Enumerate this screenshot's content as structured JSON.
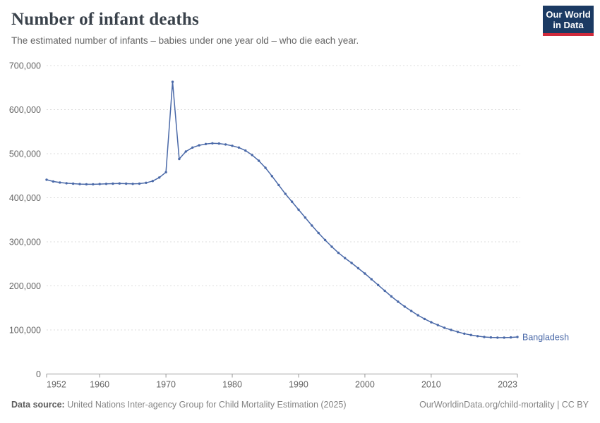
{
  "header": {
    "title": "Number of infant deaths",
    "subtitle": "The estimated number of infants – babies under one year old – who die each year.",
    "logo_line1": "Our World",
    "logo_line2": "in Data"
  },
  "footer": {
    "source_label": "Data source:",
    "source_text": " United Nations Inter-agency Group for Child Mortality Estimation (2025)",
    "attribution": "OurWorldinData.org/child-mortality | CC BY"
  },
  "colors": {
    "series_line": "#4a69a8",
    "logo_background": "#1b3a63",
    "logo_red_bar": "#cf2a3b",
    "gridline": "#dcdcdc",
    "axis_line": "#999999",
    "tick_label": "#666666"
  },
  "chart_data": {
    "type": "line",
    "title": "Number of infant deaths",
    "xlabel": "",
    "ylabel": "",
    "xlim": [
      1952,
      2023
    ],
    "ylim": [
      0,
      700000
    ],
    "grid": "horizontal-dashed",
    "legend_position": "end-of-line-label",
    "marker": "circle",
    "x_ticks": [
      1952,
      1960,
      1970,
      1980,
      1990,
      2000,
      2010,
      2023
    ],
    "y_ticks": [
      0,
      100000,
      200000,
      300000,
      400000,
      500000,
      600000,
      700000
    ],
    "series": [
      {
        "name": "Bangladesh",
        "color": "#4a69a8",
        "x": [
          1952,
          1953,
          1954,
          1955,
          1956,
          1957,
          1958,
          1959,
          1960,
          1961,
          1962,
          1963,
          1964,
          1965,
          1966,
          1967,
          1968,
          1969,
          1970,
          1971,
          1972,
          1973,
          1974,
          1975,
          1976,
          1977,
          1978,
          1979,
          1980,
          1981,
          1982,
          1983,
          1984,
          1985,
          1986,
          1987,
          1988,
          1989,
          1990,
          1991,
          1992,
          1993,
          1994,
          1995,
          1996,
          1997,
          1998,
          1999,
          2000,
          2001,
          2002,
          2003,
          2004,
          2005,
          2006,
          2007,
          2008,
          2009,
          2010,
          2011,
          2012,
          2013,
          2014,
          2015,
          2016,
          2017,
          2018,
          2019,
          2020,
          2021,
          2022,
          2023
        ],
        "values": [
          441000,
          437000,
          434500,
          433000,
          432000,
          431000,
          430500,
          430500,
          431000,
          431500,
          432000,
          432500,
          432000,
          431500,
          432000,
          434000,
          438000,
          446000,
          458000,
          663000,
          488000,
          505000,
          514000,
          519000,
          522000,
          523500,
          523000,
          521000,
          518000,
          514000,
          507000,
          497000,
          484000,
          468000,
          449000,
          429000,
          409000,
          391000,
          373000,
          355000,
          337000,
          320000,
          304000,
          289000,
          275000,
          263000,
          252000,
          240000,
          228000,
          215000,
          202000,
          189000,
          176000,
          164000,
          153000,
          143000,
          133500,
          125000,
          117500,
          111000,
          105000,
          100000,
          95500,
          91500,
          88500,
          86000,
          84000,
          83000,
          82500,
          82500,
          83000,
          84000
        ]
      }
    ]
  }
}
